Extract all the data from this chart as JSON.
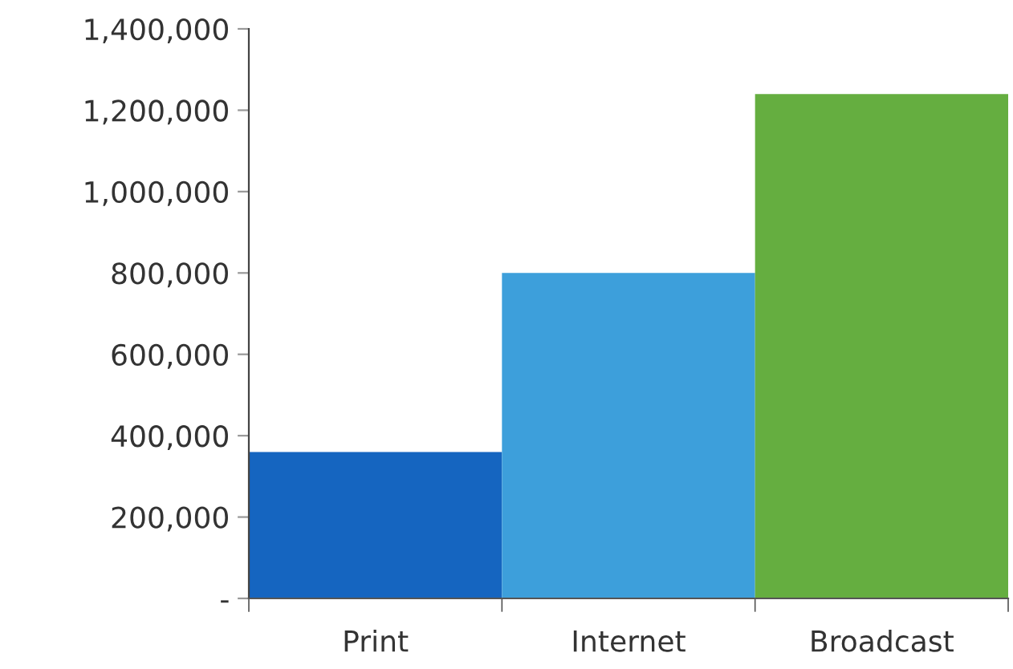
{
  "chart_data": {
    "type": "bar",
    "categories": [
      "Print",
      "Internet",
      "Broadcast"
    ],
    "values": [
      360000,
      800000,
      1240000
    ],
    "colors": [
      "#1565c0",
      "#3d9fdb",
      "#65ae40"
    ],
    "ylim": [
      0,
      1400000
    ],
    "yticks": [
      {
        "value": 0,
        "label": "-"
      },
      {
        "value": 200000,
        "label": "200,000"
      },
      {
        "value": 400000,
        "label": "400,000"
      },
      {
        "value": 600000,
        "label": "600,000"
      },
      {
        "value": 800000,
        "label": "800,000"
      },
      {
        "value": 1000000,
        "label": "1,000,000"
      },
      {
        "value": 1200000,
        "label": "1,200,000"
      },
      {
        "value": 1400000,
        "label": "1,400,000"
      }
    ],
    "grid": false,
    "legend": false
  }
}
